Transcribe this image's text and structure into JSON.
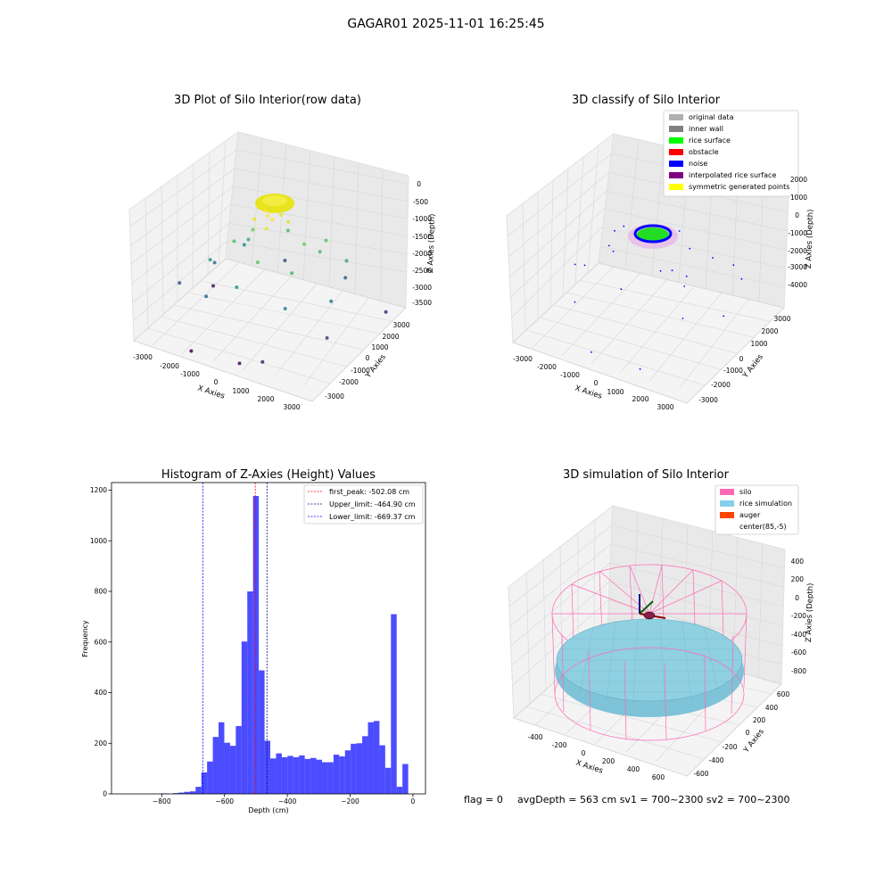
{
  "suptitle": "GAGAR01 2025-11-01 16:25:45",
  "footer": {
    "flag": "flag = 0",
    "stats": "avgDepth = 563 cm  sv1 = 700~2300  sv2 = 700~2300"
  },
  "chart_data": [
    {
      "type": "scatter3d",
      "title": "3D Plot of Silo Interior(row data)",
      "xlabel": "X Axies",
      "ylabel": "Y Axies",
      "zlabel": "Z Axies (Depth)",
      "x_ticks": [
        "-3000",
        "-2000",
        "-1000",
        "0",
        "1000",
        "2000",
        "3000"
      ],
      "y_ticks": [
        "-3000",
        "-2000",
        "-1000",
        "0",
        "1000",
        "2000",
        "3000"
      ],
      "z_ticks": [
        "0",
        "-500",
        "-1000",
        "-1500",
        "-2000",
        "-2500",
        "-3000",
        "-3500"
      ],
      "colormap": "viridis",
      "points": [
        {
          "x": -300,
          "y": 200,
          "z": -650
        },
        {
          "x": 100,
          "y": 400,
          "z": -700
        },
        {
          "x": 300,
          "y": -100,
          "z": -600
        },
        {
          "x": -200,
          "y": -300,
          "z": -680
        },
        {
          "x": 500,
          "y": 300,
          "z": -720
        },
        {
          "x": -500,
          "y": 500,
          "z": -760
        },
        {
          "x": 0,
          "y": 0,
          "z": -620
        },
        {
          "x": 400,
          "y": -400,
          "z": -700
        },
        {
          "x": 800,
          "y": 600,
          "z": -1300
        },
        {
          "x": 1100,
          "y": 900,
          "z": -1500
        },
        {
          "x": 900,
          "y": 1300,
          "z": -1400
        },
        {
          "x": -700,
          "y": 100,
          "z": -1250
        },
        {
          "x": -900,
          "y": -400,
          "z": -1450
        },
        {
          "x": -1100,
          "y": 300,
          "z": -1700
        },
        {
          "x": 600,
          "y": -900,
          "z": -1350
        },
        {
          "x": 1300,
          "y": -300,
          "z": -1600
        },
        {
          "x": -400,
          "y": 1100,
          "z": -1500
        },
        {
          "x": -1300,
          "y": -900,
          "z": -1900
        },
        {
          "x": 1500,
          "y": 1500,
          "z": -1800
        },
        {
          "x": 200,
          "y": -1300,
          "z": -2000
        },
        {
          "x": -1600,
          "y": 600,
          "z": -2100
        },
        {
          "x": -1900,
          "y": -200,
          "z": -2400
        },
        {
          "x": 1700,
          "y": -900,
          "z": -2200
        },
        {
          "x": -800,
          "y": -1500,
          "z": -2500
        },
        {
          "x": 2100,
          "y": 400,
          "z": -2300
        },
        {
          "x": -2200,
          "y": -1200,
          "z": -2700
        },
        {
          "x": 900,
          "y": 2000,
          "z": -2600
        },
        {
          "x": -1300,
          "y": 1800,
          "z": -2800
        },
        {
          "x": 2300,
          "y": 2200,
          "z": -3100
        },
        {
          "x": -2400,
          "y": 200,
          "z": -3300
        },
        {
          "x": 1200,
          "y": -2100,
          "z": -3400
        },
        {
          "x": -400,
          "y": -2400,
          "z": -3500
        },
        {
          "x": 1900,
          "y": -1900,
          "z": -3200
        },
        {
          "x": 2600,
          "y": -200,
          "z": -2900
        }
      ]
    },
    {
      "type": "scatter3d",
      "title": "3D classify of Silo Interior",
      "xlabel": "X Axies",
      "ylabel": "Y Axies",
      "zlabel": "Z Axies (Depth)",
      "x_ticks": [
        "-3000",
        "-2000",
        "-1000",
        "0",
        "1000",
        "2000",
        "3000"
      ],
      "y_ticks": [
        "-3000",
        "-2000",
        "-1000",
        "0",
        "1000",
        "2000",
        "3000"
      ],
      "z_ticks": [
        "2000",
        "1000",
        "0",
        "-1000",
        "-2000",
        "-3000",
        "-4000"
      ],
      "legend": [
        {
          "label": "original data",
          "color": "#b0b0b0"
        },
        {
          "label": "inner wall",
          "color": "#808080"
        },
        {
          "label": "rice surface",
          "color": "#00ff00"
        },
        {
          "label": "obstacle",
          "color": "#ff0000"
        },
        {
          "label": "noise",
          "color": "#0000ff"
        },
        {
          "label": "interpolated rice surface",
          "color": "#800080"
        },
        {
          "label": "symmetric generated points",
          "color": "#ffff00"
        }
      ],
      "legend_loc": "upper right",
      "ring": {
        "radius": 600,
        "z": -500
      },
      "noise_points": [
        {
          "x": -1500,
          "y": 300,
          "z": -900
        },
        {
          "x": -1200,
          "y": -500,
          "z": -1100
        },
        {
          "x": 1400,
          "y": 900,
          "z": -1000
        },
        {
          "x": 1700,
          "y": -400,
          "z": -1300
        },
        {
          "x": -600,
          "y": 1500,
          "z": -1200
        },
        {
          "x": 500,
          "y": -1600,
          "z": -1400
        },
        {
          "x": -1900,
          "y": -1100,
          "z": -1800
        },
        {
          "x": 2000,
          "y": 1400,
          "z": -1700
        },
        {
          "x": -2200,
          "y": 600,
          "z": -1500
        },
        {
          "x": 2300,
          "y": -1000,
          "z": -1900
        },
        {
          "x": -800,
          "y": -2100,
          "z": -2200
        },
        {
          "x": 900,
          "y": 2100,
          "z": -2000
        },
        {
          "x": -2400,
          "y": -300,
          "z": -2400
        },
        {
          "x": 2500,
          "y": 300,
          "z": -2300
        },
        {
          "x": 300,
          "y": -2500,
          "z": -3300
        },
        {
          "x": -1200,
          "y": 2300,
          "z": -3400
        },
        {
          "x": 1700,
          "y": -2000,
          "z": -3500
        },
        {
          "x": -1800,
          "y": 1900,
          "z": -3300
        },
        {
          "x": 700,
          "y": 700,
          "z": -900
        },
        {
          "x": -700,
          "y": -800,
          "z": -950
        },
        {
          "x": 1100,
          "y": -300,
          "z": -1050
        },
        {
          "x": -1000,
          "y": 400,
          "z": -1000
        }
      ]
    },
    {
      "type": "histogram",
      "title": "Histogram of Z-Axies (Height) Values",
      "xlabel": "Depth (cm)",
      "ylabel": "Frequency",
      "xlim": [
        -960,
        40
      ],
      "ylim": [
        0,
        1230
      ],
      "x_ticks": [
        -800,
        -600,
        -400,
        -200,
        0
      ],
      "y_ticks": [
        0,
        200,
        400,
        600,
        800,
        1000,
        1200
      ],
      "bin_width": 18.3,
      "color": "#0000ff",
      "bins": [
        {
          "left": -802,
          "count": 2
        },
        {
          "left": -783.7,
          "count": 0
        },
        {
          "left": -765.4,
          "count": 3
        },
        {
          "left": -747.1,
          "count": 5
        },
        {
          "left": -728.8,
          "count": 8
        },
        {
          "left": -710.5,
          "count": 10
        },
        {
          "left": -692.2,
          "count": 28
        },
        {
          "left": -673.9,
          "count": 85
        },
        {
          "left": -655.6,
          "count": 128
        },
        {
          "left": -637.3,
          "count": 225
        },
        {
          "left": -619,
          "count": 283
        },
        {
          "left": -600.7,
          "count": 202
        },
        {
          "left": -582.4,
          "count": 190
        },
        {
          "left": -564.1,
          "count": 268
        },
        {
          "left": -545.8,
          "count": 602
        },
        {
          "left": -527.5,
          "count": 800
        },
        {
          "left": -509.2,
          "count": 1177
        },
        {
          "left": -490.9,
          "count": 488
        },
        {
          "left": -472.6,
          "count": 210
        },
        {
          "left": -454.3,
          "count": 140
        },
        {
          "left": -436,
          "count": 160
        },
        {
          "left": -417.7,
          "count": 145
        },
        {
          "left": -399.4,
          "count": 150
        },
        {
          "left": -381.1,
          "count": 145
        },
        {
          "left": -362.8,
          "count": 152
        },
        {
          "left": -344.5,
          "count": 138
        },
        {
          "left": -326.2,
          "count": 142
        },
        {
          "left": -307.9,
          "count": 135
        },
        {
          "left": -289.6,
          "count": 125
        },
        {
          "left": -271.3,
          "count": 125
        },
        {
          "left": -253,
          "count": 155
        },
        {
          "left": -234.7,
          "count": 148
        },
        {
          "left": -216.4,
          "count": 172
        },
        {
          "left": -198.1,
          "count": 198
        },
        {
          "left": -179.8,
          "count": 200
        },
        {
          "left": -161.5,
          "count": 228
        },
        {
          "left": -143.2,
          "count": 283
        },
        {
          "left": -124.9,
          "count": 288
        },
        {
          "left": -106.6,
          "count": 192
        },
        {
          "left": -88.3,
          "count": 103
        },
        {
          "left": -70,
          "count": 710
        },
        {
          "left": -51.7,
          "count": 28
        },
        {
          "left": -33.4,
          "count": 118
        }
      ],
      "vlines": [
        {
          "label": "first_peak: -502.08 cm",
          "x": -502.08,
          "color": "#ff0000"
        },
        {
          "label": "Upper_limit: -464.90 cm",
          "x": -464.9,
          "color": "#00008b"
        },
        {
          "label": "Lower_limit: -669.37 cm",
          "x": -669.37,
          "color": "#0000ff"
        }
      ],
      "legend_loc": "upper right"
    },
    {
      "type": "surface3d",
      "title": "3D simulation of Silo Interior",
      "xlabel": "X Axies",
      "ylabel": "Y Axies",
      "zlabel": "Z Axies (Depth)",
      "x_ticks": [
        "-400",
        "-200",
        "0",
        "200",
        "400",
        "600"
      ],
      "y_ticks": [
        "600",
        "400",
        "200",
        "0",
        "-200",
        "-400",
        "-600"
      ],
      "z_ticks": [
        "400",
        "200",
        "0",
        "-200",
        "-400",
        "-600",
        "-800"
      ],
      "legend": [
        {
          "label": "silo",
          "color": "#ff69b4"
        },
        {
          "label": "rice simulation",
          "color": "#87ceeb"
        },
        {
          "label": "auger",
          "color": "#ff4500"
        },
        {
          "label": "center(85,-5)",
          "color": "#ffffff"
        }
      ],
      "legend_loc": "upper right",
      "silo_radius": 700,
      "silo_z_range": [
        -900,
        0
      ],
      "rice_surface_z": -563
    }
  ]
}
